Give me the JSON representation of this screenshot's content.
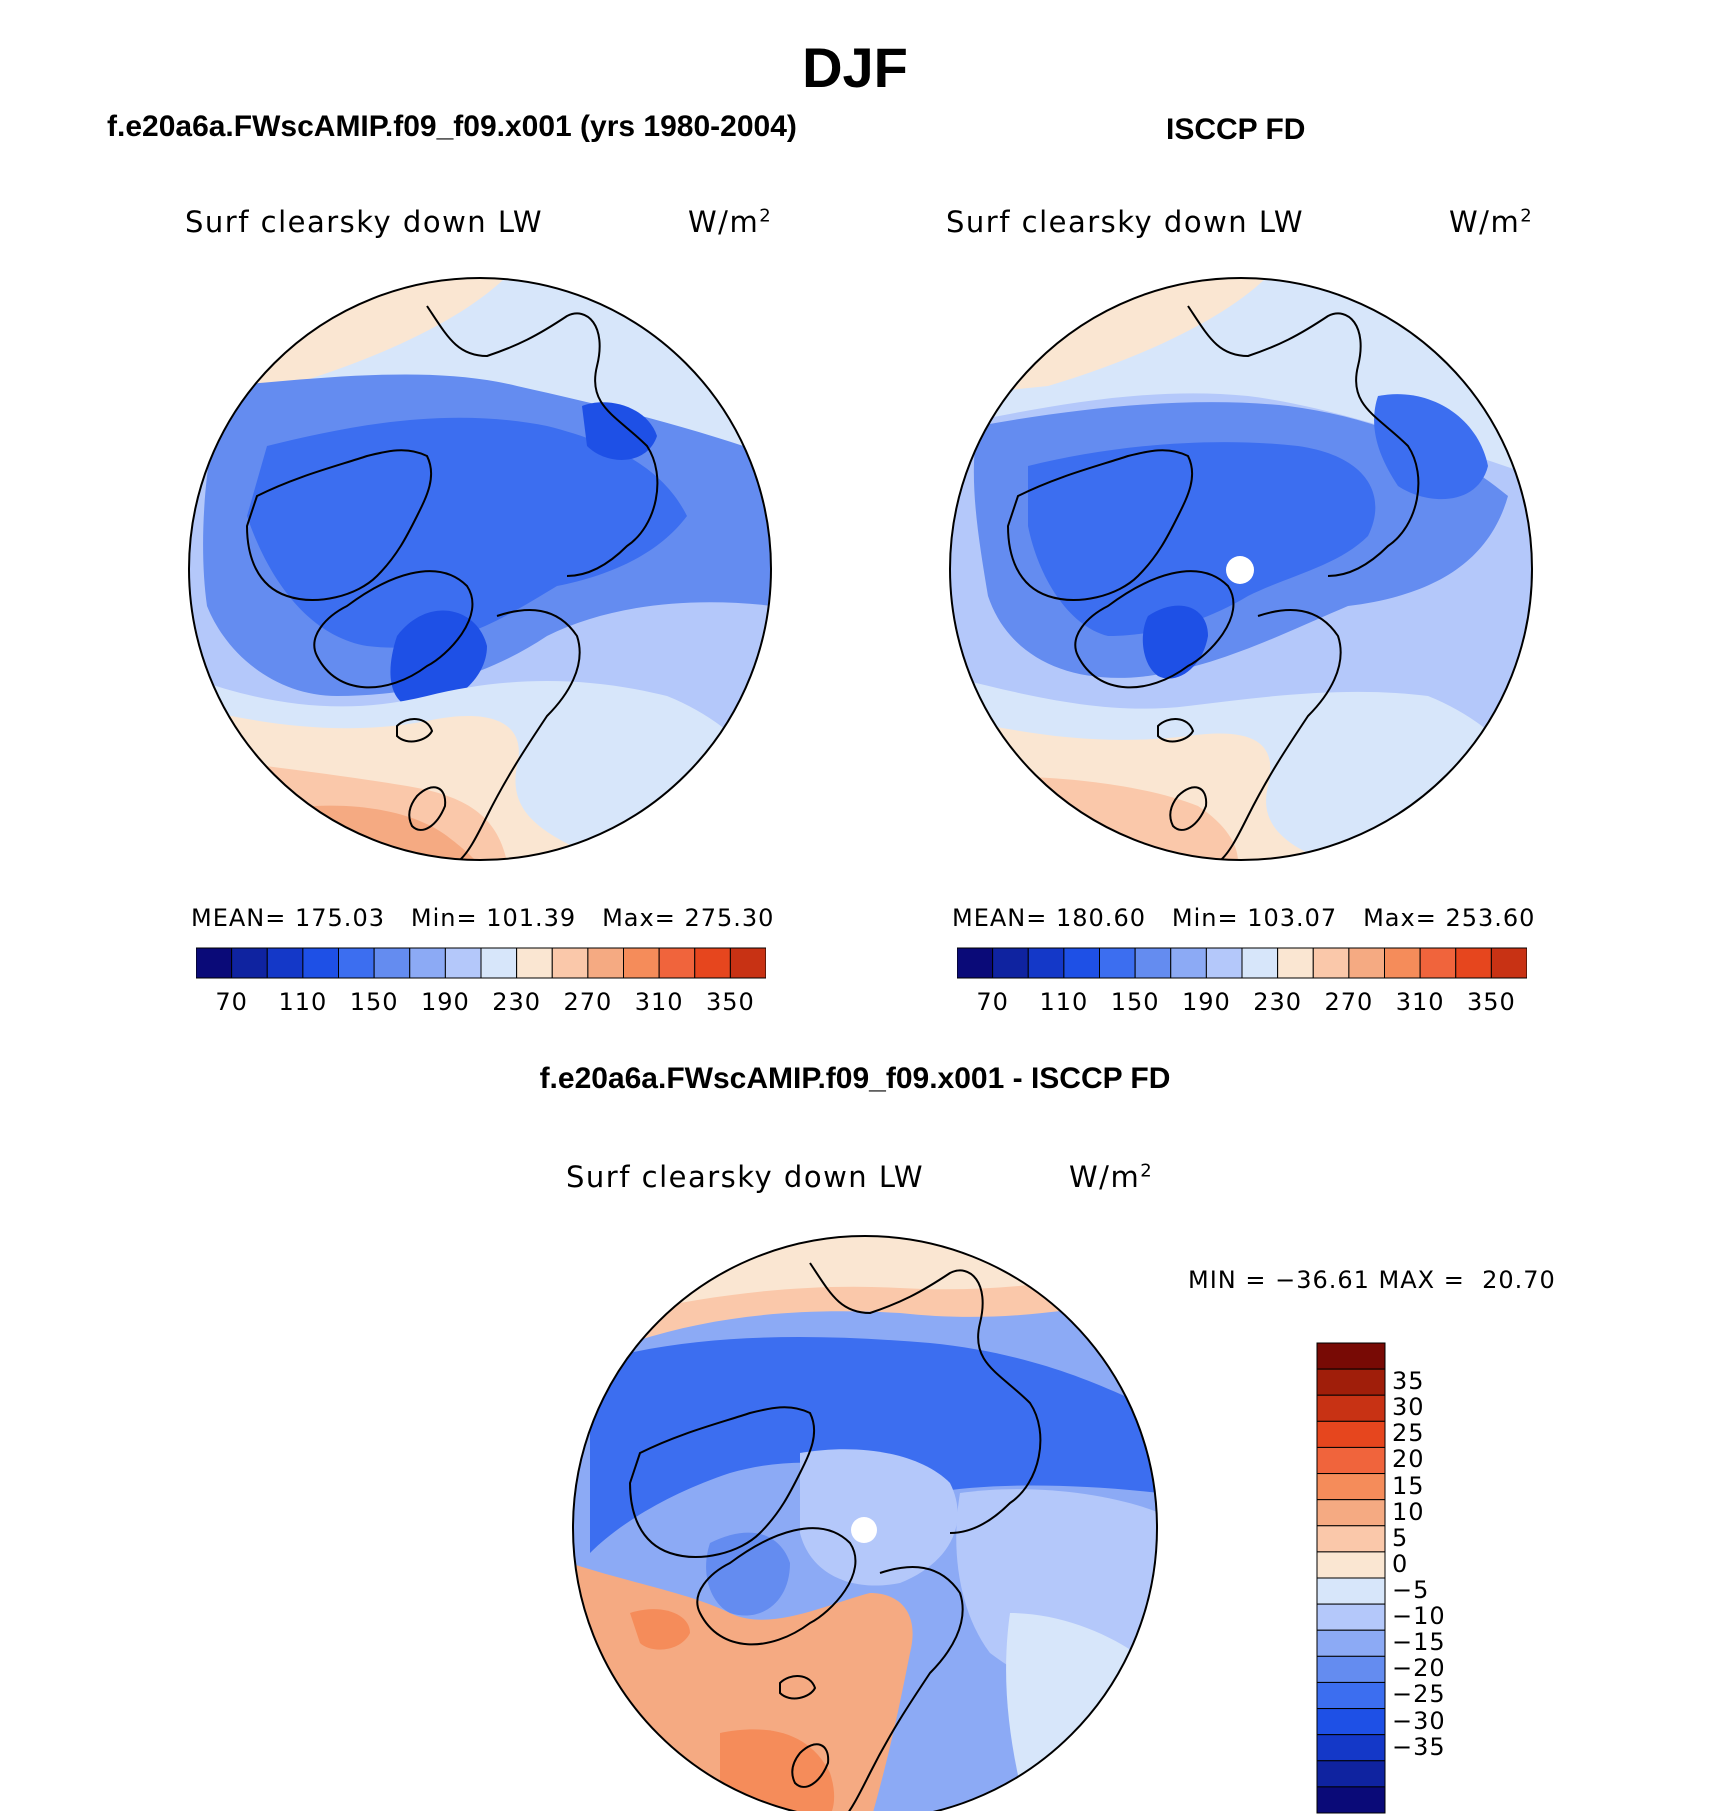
{
  "figure": {
    "title": "DJF",
    "bottom_title": "f.e20a6a.FWscAMIP.f09_f09.x001 - ISCCP FD"
  },
  "palette": {
    "levels_colors": [
      "#0a0a78",
      "#0f23a0",
      "#1438c8",
      "#1e50e6",
      "#3c6ef0",
      "#648cf0",
      "#8caaf5",
      "#b4c8fa",
      "#d7e6fa",
      "#fae6d2",
      "#fac8aa",
      "#f5aa82",
      "#f58c5a",
      "#f0643c",
      "#e6461e",
      "#c83214",
      "#a01e0a",
      "#780a05"
    ],
    "diff_colors": [
      "#0a0a78",
      "#0f23a0",
      "#1438c8",
      "#1e50e6",
      "#3c6ef0",
      "#648cf0",
      "#8caaf5",
      "#b4c8fa",
      "#d7e6fa",
      "#fae6d2",
      "#fac8aa",
      "#f5aa82",
      "#f58c5a",
      "#f0643c",
      "#e6461e",
      "#c83214",
      "#a01e0a",
      "#780a05"
    ]
  },
  "panels": [
    {
      "id": "model",
      "title": "f.e20a6a.FWscAMIP.f09_f09.x001 (yrs 1980-2004)",
      "variable": "Surf clearsky down LW",
      "units_base": "W/m",
      "units_exp": "2",
      "stats": {
        "mean": "175.03",
        "min": "101.39",
        "max": "275.30"
      },
      "stats_labels": {
        "mean": "MEAN=",
        "min": "Min=",
        "max": "Max="
      },
      "colorbar_ticks": [
        "70",
        "110",
        "150",
        "190",
        "230",
        "270",
        "310",
        "350"
      ]
    },
    {
      "id": "obs",
      "title": "ISCCP FD",
      "variable": "Surf clearsky down LW",
      "units_base": "W/m",
      "units_exp": "2",
      "stats": {
        "mean": "180.60",
        "min": "103.07",
        "max": "253.60"
      },
      "stats_labels": {
        "mean": "MEAN=",
        "min": "Min=",
        "max": "Max="
      },
      "colorbar_ticks": [
        "70",
        "110",
        "150",
        "190",
        "230",
        "270",
        "310",
        "350"
      ]
    },
    {
      "id": "diff",
      "variable": "Surf clearsky down LW",
      "units_base": "W/m",
      "units_exp": "2",
      "minmax_text": "MIN = −36.61 MAX =  20.70",
      "colorbar_ticks": [
        "35",
        "30",
        "25",
        "20",
        "15",
        "10",
        "5",
        "0",
        "−5",
        "−10",
        "−15",
        "−20",
        "−25",
        "−30",
        "−35"
      ]
    }
  ],
  "chart_data": [
    {
      "type": "heatmap",
      "projection": "north polar stereographic",
      "title": "f.e20a6a.FWscAMIP.f09_f09.x001 (yrs 1980-2004)",
      "variable": "Surf clearsky down LW",
      "units": "W/m2",
      "mean": 175.03,
      "min": 101.39,
      "max": 275.3,
      "contour_levels": [
        70,
        80,
        90,
        100,
        110,
        120,
        130,
        140,
        150,
        160,
        170,
        180,
        190,
        200,
        210,
        220,
        230,
        240,
        250,
        260,
        270,
        280,
        290,
        300,
        310,
        320,
        330,
        340,
        350
      ],
      "colorbar_labels": [
        70,
        110,
        150,
        190,
        230,
        270,
        310,
        350
      ]
    },
    {
      "type": "heatmap",
      "projection": "north polar stereographic",
      "title": "ISCCP FD",
      "variable": "Surf clearsky down LW",
      "units": "W/m2",
      "mean": 180.6,
      "min": 103.07,
      "max": 253.6,
      "colorbar_labels": [
        70,
        110,
        150,
        190,
        230,
        270,
        310,
        350
      ]
    },
    {
      "type": "heatmap",
      "projection": "north polar stereographic",
      "title": "f.e20a6a.FWscAMIP.f09_f09.x001 - ISCCP FD",
      "variable": "Surf clearsky down LW",
      "units": "W/m2",
      "min": -36.61,
      "max": 20.7,
      "colorbar_labels": [
        35,
        30,
        25,
        20,
        15,
        10,
        5,
        0,
        -5,
        -10,
        -15,
        -20,
        -25,
        -30,
        -35
      ]
    }
  ]
}
